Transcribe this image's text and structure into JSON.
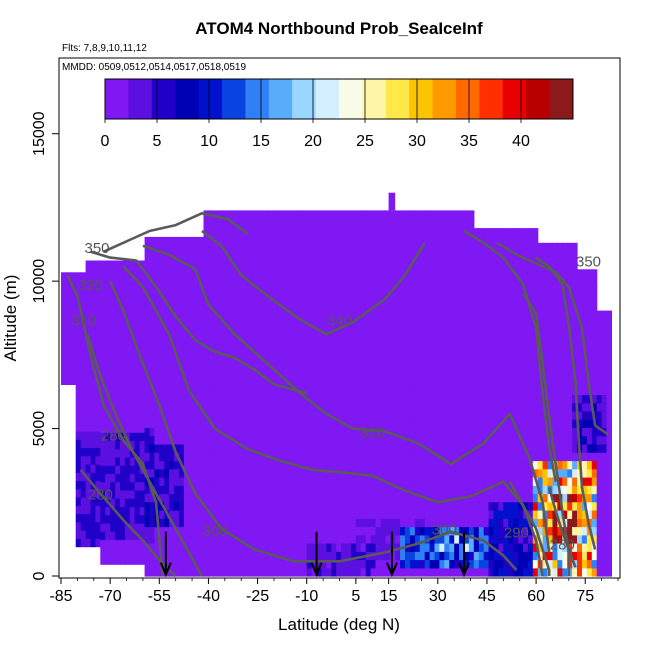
{
  "chart_data": {
    "type": "heatmap",
    "title": "ATOM4 Northbound Prob_SeaIceInf",
    "flights_note": "Flts: 7,8,9,10,11,12",
    "dates_note": "MMDD: 0509,0512,0514,0517,0518,0519",
    "xlabel": "Latitude (deg N)",
    "ylabel": "Altitude (m)",
    "xlim": [
      -85,
      85
    ],
    "ylim": [
      0,
      17500
    ],
    "x_ticks": [
      -85,
      -70,
      -55,
      -40,
      -25,
      -10,
      5,
      15,
      30,
      45,
      60,
      75
    ],
    "x_tick_labels": [
      "-85",
      "-70",
      "-55",
      "-40",
      "-25",
      "-10",
      "5",
      "15",
      "30",
      "45",
      "60",
      "75"
    ],
    "y_ticks": [
      0,
      5000,
      10000,
      15000
    ],
    "y_tick_labels": [
      "0",
      "5000",
      "10000",
      "15000"
    ],
    "colorbar": {
      "min": 0,
      "max": 45,
      "ticks": [
        0,
        5,
        10,
        15,
        20,
        25,
        30,
        35,
        40
      ],
      "tick_labels": [
        "0",
        "5",
        "10",
        "15",
        "20",
        "25",
        "30",
        "35",
        "40"
      ],
      "colors": [
        "#7f18f2",
        "#5c10e0",
        "#2000c8",
        "#0000b4",
        "#0010cc",
        "#0a44e0",
        "#2f7ff5",
        "#58acfa",
        "#9ad6ff",
        "#d4efff",
        "#f7fbe8",
        "#fff7a8",
        "#ffe94a",
        "#ffc400",
        "#ff9900",
        "#ff6a00",
        "#ff2f00",
        "#e80000",
        "#b80000",
        "#8c1a1a"
      ]
    },
    "data_coverage": [
      {
        "x": [
          -85,
          -78
        ],
        "top": 10300
      },
      {
        "x": [
          -78,
          -60
        ],
        "top": 10700
      },
      {
        "x": [
          -60,
          -42
        ],
        "top": 11500
      },
      {
        "x": [
          -42,
          0
        ],
        "top": 12400
      },
      {
        "x": [
          0,
          20
        ],
        "top": 12400
      },
      {
        "x": [
          20,
          40
        ],
        "top": 12400
      },
      {
        "x": [
          40,
          60
        ],
        "top": 11800
      },
      {
        "x": [
          60,
          72
        ],
        "top": 11300
      },
      {
        "x": [
          72,
          78
        ],
        "top": 10400
      },
      {
        "x": [
          78,
          82
        ],
        "top": 9000
      }
    ],
    "data_bottom": [
      {
        "x": [
          -85,
          -81
        ],
        "bottom": 6500
      },
      {
        "x": [
          -81,
          -73
        ],
        "bottom": 1000
      },
      {
        "x": [
          -73,
          -60
        ],
        "bottom": 400
      },
      {
        "x": [
          -60,
          82
        ],
        "bottom": 0
      }
    ],
    "high_value_regions": [
      {
        "x": [
          -83,
          -58
        ],
        "y": [
          1000,
          4800
        ],
        "value": 5
      },
      {
        "x": [
          -60,
          -48
        ],
        "y": [
          1500,
          4300
        ],
        "value": 6
      },
      {
        "x": [
          -10,
          10
        ],
        "y": [
          0,
          900
        ],
        "value": 4
      },
      {
        "x": [
          5,
          25
        ],
        "y": [
          400,
          1800
        ],
        "value": 3
      },
      {
        "x": [
          18,
          45
        ],
        "y": [
          200,
          1400
        ],
        "value": 12
      },
      {
        "x": [
          28,
          40
        ],
        "y": [
          600,
          1300
        ],
        "value": 18
      },
      {
        "x": [
          45,
          58
        ],
        "y": [
          0,
          2500
        ],
        "value": 8
      },
      {
        "x": [
          58,
          78
        ],
        "y": [
          0,
          3800
        ],
        "value": 30
      },
      {
        "x": [
          65,
          72
        ],
        "y": [
          1000,
          2800
        ],
        "value": 42
      },
      {
        "x": [
          70,
          80
        ],
        "y": [
          4000,
          6000
        ],
        "value": 6
      }
    ],
    "contours": [
      {
        "level": "280",
        "points": [
          [
            -83,
            10200
          ],
          [
            -80,
            9500
          ],
          [
            -76,
            7500
          ],
          [
            -72,
            5800
          ],
          [
            -66,
            4600
          ],
          [
            -60,
            3800
          ],
          [
            -56,
            2500
          ],
          [
            -54,
            0
          ]
        ]
      },
      {
        "level": "280",
        "points": [
          [
            -79,
            3600
          ],
          [
            -73,
            2800
          ],
          [
            -66,
            1900
          ],
          [
            -60,
            1200
          ],
          [
            -54,
            400
          ],
          [
            -50,
            0
          ]
        ]
      },
      {
        "level": "290",
        "points": [
          [
            -77,
            8200
          ],
          [
            -73,
            6800
          ],
          [
            -68,
            5400
          ],
          [
            -63,
            4200
          ],
          [
            -58,
            3200
          ],
          [
            -52,
            2000
          ],
          [
            -46,
            800
          ],
          [
            -42,
            0
          ]
        ]
      },
      {
        "level": "300",
        "points": [
          [
            -70,
            10000
          ],
          [
            -66,
            9000
          ],
          [
            -60,
            7200
          ],
          [
            -55,
            5800
          ],
          [
            -50,
            4200
          ],
          [
            -44,
            2800
          ],
          [
            -36,
            1600
          ],
          [
            -26,
            900
          ],
          [
            -14,
            500
          ],
          [
            0,
            500
          ],
          [
            14,
            800
          ],
          [
            24,
            1100
          ],
          [
            34,
            1500
          ],
          [
            44,
            1200
          ],
          [
            50,
            700
          ],
          [
            54,
            200
          ]
        ]
      },
      {
        "level": "310",
        "points": [
          [
            -66,
            10500
          ],
          [
            -60,
            9800
          ],
          [
            -52,
            8200
          ],
          [
            -46,
            6300
          ],
          [
            -38,
            5000
          ],
          [
            -28,
            4300
          ],
          [
            -18,
            3900
          ],
          [
            -8,
            3600
          ],
          [
            2,
            3500
          ],
          [
            10,
            3400
          ],
          [
            20,
            2900
          ],
          [
            30,
            2500
          ],
          [
            40,
            2700
          ],
          [
            50,
            3200
          ],
          [
            56,
            2400
          ],
          [
            60,
            1200
          ],
          [
            62,
            0
          ]
        ]
      },
      {
        "level": "320",
        "points": [
          [
            -60,
            11200
          ],
          [
            -52,
            10900
          ],
          [
            -44,
            10400
          ],
          [
            -40,
            9200
          ],
          [
            -32,
            8200
          ],
          [
            -22,
            7200
          ],
          [
            -12,
            6200
          ],
          [
            -4,
            5500
          ],
          [
            4,
            5000
          ],
          [
            14,
            4900
          ],
          [
            24,
            4500
          ],
          [
            34,
            3800
          ],
          [
            44,
            4500
          ],
          [
            52,
            5500
          ],
          [
            58,
            4000
          ],
          [
            62,
            2500
          ],
          [
            64,
            800
          ]
        ]
      },
      {
        "level": "330",
        "points": [
          [
            -76,
            11000
          ],
          [
            -70,
            10800
          ],
          [
            -62,
            10700
          ],
          [
            -56,
            9800
          ],
          [
            -50,
            8800
          ],
          [
            -44,
            8000
          ],
          [
            -38,
            7600
          ],
          [
            -32,
            7400
          ],
          [
            -26,
            7000
          ],
          [
            -20,
            6500
          ],
          [
            -10,
            6200
          ]
        ]
      },
      {
        "level": "340",
        "points": [
          [
            -42,
            11700
          ],
          [
            -36,
            11200
          ],
          [
            -30,
            10200
          ],
          [
            -22,
            9500
          ],
          [
            -12,
            8700
          ],
          [
            -4,
            8200
          ],
          [
            4,
            8600
          ],
          [
            14,
            9400
          ],
          [
            20,
            10200
          ],
          [
            26,
            11300
          ]
        ]
      },
      {
        "level": "350",
        "points": [
          [
            -72,
            11000
          ],
          [
            -66,
            11300
          ],
          [
            -58,
            11700
          ],
          [
            -50,
            11900
          ],
          [
            -42,
            12300
          ],
          [
            -34,
            12100
          ],
          [
            -28,
            11600
          ]
        ]
      },
      {
        "level": "340",
        "points": [
          [
            38,
            11700
          ],
          [
            44,
            11300
          ],
          [
            50,
            10800
          ],
          [
            56,
            9900
          ],
          [
            60,
            8400
          ],
          [
            62,
            6200
          ],
          [
            64,
            4400
          ],
          [
            66,
            3200
          ]
        ]
      },
      {
        "level": "350",
        "points": [
          [
            48,
            11300
          ],
          [
            54,
            10900
          ],
          [
            60,
            10600
          ],
          [
            66,
            10300
          ],
          [
            70,
            9800
          ],
          [
            74,
            8400
          ],
          [
            76,
            6600
          ],
          [
            78,
            5100
          ],
          [
            82,
            4800
          ]
        ]
      },
      {
        "level": "",
        "points": [
          [
            60,
            10800
          ],
          [
            64,
            10500
          ],
          [
            68,
            9900
          ],
          [
            70,
            8500
          ],
          [
            72,
            6600
          ],
          [
            73,
            4600
          ],
          [
            74,
            3000
          ],
          [
            76,
            1800
          ],
          [
            78,
            900
          ]
        ]
      },
      {
        "level": "",
        "points": [
          [
            56,
            9600
          ],
          [
            60,
            8900
          ],
          [
            62,
            7200
          ],
          [
            64,
            5400
          ],
          [
            66,
            3800
          ],
          [
            68,
            2200
          ],
          [
            70,
            800
          ],
          [
            70,
            0
          ]
        ]
      },
      {
        "level": "290",
        "points": [
          [
            52,
            3200
          ],
          [
            56,
            2400
          ],
          [
            60,
            1600
          ],
          [
            62,
            900
          ],
          [
            64,
            200
          ],
          [
            64,
            0
          ]
        ]
      },
      {
        "level": "280",
        "points": [
          [
            64,
            3000
          ],
          [
            66,
            2200
          ],
          [
            68,
            1500
          ],
          [
            70,
            900
          ],
          [
            72,
            300
          ]
        ]
      }
    ],
    "contour_labels": [
      {
        "text": "350",
        "x": -74,
        "y": 10950
      },
      {
        "text": "330",
        "x": -76,
        "y": 9700
      },
      {
        "text": "310",
        "x": -78,
        "y": 8500
      },
      {
        "text": "340",
        "x": 0,
        "y": 8500
      },
      {
        "text": "320",
        "x": 10,
        "y": 4700
      },
      {
        "text": "350",
        "x": 76,
        "y": 10500
      },
      {
        "text": "280",
        "x": -69,
        "y": 4600
      },
      {
        "text": "280",
        "x": -73,
        "y": 2600
      },
      {
        "text": "300",
        "x": -38,
        "y": 1350
      },
      {
        "text": "300",
        "x": 32,
        "y": 1400
      },
      {
        "text": "290",
        "x": 54,
        "y": 1300
      },
      {
        "text": "280",
        "x": 68,
        "y": 900
      }
    ],
    "profile_arrows_at_latitude": [
      -53,
      -7,
      16,
      38
    ]
  }
}
